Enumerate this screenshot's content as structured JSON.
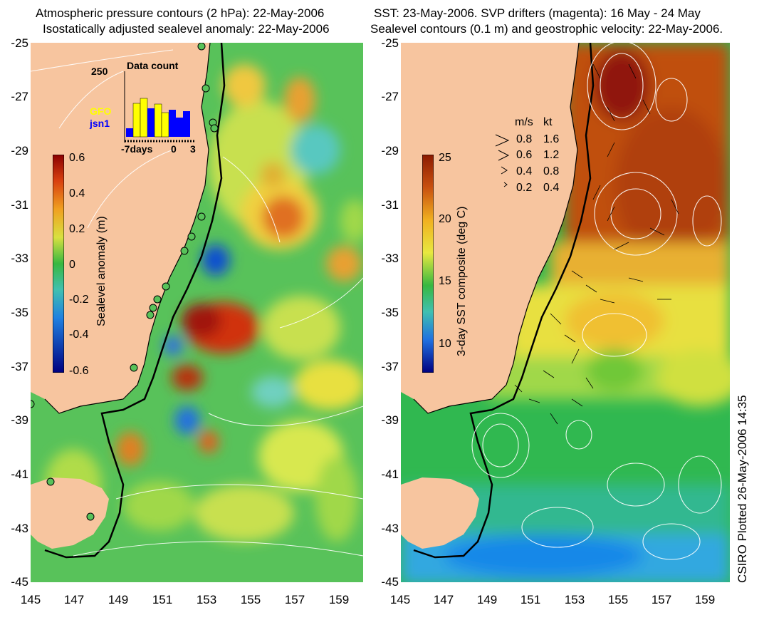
{
  "left_panel": {
    "title_line1": "Atmospheric pressure contours (2 hPa): 22-May-2006",
    "title_line2": "Isostatically adjusted sealevel anomaly: 22-May-2006",
    "colorbar": {
      "label": "Sealevel anomaly (m)",
      "ticks": [
        "0.6",
        "0.4",
        "0.2",
        "0",
        "-0.2",
        "-0.4",
        "-0.6"
      ]
    },
    "inset": {
      "title": "Data count",
      "ymax_label": "250",
      "x_labels": [
        "-7days",
        "0",
        "3"
      ],
      "satellite_1": "GFO",
      "satellite_1_color": "#ffff00",
      "satellite_2": "jsn1",
      "satellite_2_color": "#0000ff"
    }
  },
  "right_panel": {
    "title_line1": "SST: 23-May-2006. SVP drifters (magenta): 16 May - 24 May",
    "title_line2": "Sealevel contours (0.1 m) and geostrophic velocity: 22-May-2006.",
    "colorbar": {
      "label": "3-day SST composite (deg C)",
      "ticks": [
        "25",
        "20",
        "15",
        "10"
      ]
    },
    "velocity_legend": {
      "header_ms": "m/s",
      "header_kt": "kt",
      "rows": [
        {
          "ms": "0.8",
          "kt": "1.6"
        },
        {
          "ms": "0.6",
          "kt": "1.2"
        },
        {
          "ms": "0.4",
          "kt": "0.8"
        },
        {
          "ms": "0.2",
          "kt": "0.4"
        }
      ]
    }
  },
  "axes": {
    "y_ticks": [
      "-25",
      "-27",
      "-29",
      "-31",
      "-33",
      "-35",
      "-37",
      "-39",
      "-41",
      "-43",
      "-45"
    ],
    "x_ticks": [
      "145",
      "147",
      "149",
      "151",
      "153",
      "155",
      "157",
      "159"
    ]
  },
  "credit": "CSIRO Plotted 26-May-2006 14:35",
  "colors": {
    "land": "#f7c59f",
    "coast": "#000000",
    "contour": "#ffffff"
  }
}
